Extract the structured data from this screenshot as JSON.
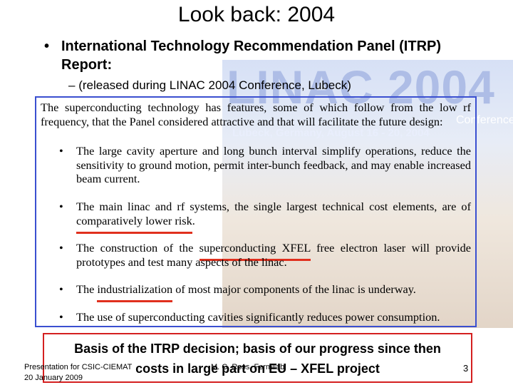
{
  "slide": {
    "title": "Look back: 2004",
    "bullet": "International Technology Recommendation Panel (ITRP) Report:",
    "sub_bullet": "(released during LINAC 2004 Conference, Lubeck)",
    "background": {
      "banner": "LINAC 2004",
      "conference": "Conference",
      "place": "Lubeck, Germany, August 16 - 20, 2004"
    },
    "quote": {
      "intro": "The superconducting technology has features, some of which follow from the low rf frequency, that the Panel considered attractive and that will facilitate the future design:",
      "items": [
        [
          {
            "text": "The large cavity aperture and long bunch interval simplify operations, reduce the sensitivity to ground motion, permit inter-bunch feedback, and may enable increased beam current."
          }
        ],
        [
          {
            "text": "The main linac and rf systems, the single largest technical cost elements, are of "
          },
          {
            "text": "comparatively lower risk",
            "highlight": true
          },
          {
            "text": "."
          }
        ],
        [
          {
            "text": "The construction of the "
          },
          {
            "text": "superconducting XFEL",
            "highlight": true
          },
          {
            "text": " free electron laser will provide prototypes and test many aspects of the linac."
          }
        ],
        [
          {
            "text": "The "
          },
          {
            "text": "industrialization",
            "highlight": true
          },
          {
            "text": " of most major components of the linac is underway."
          }
        ],
        [
          {
            "text": "The use of superconducting cavities significantly reduces power consumption."
          }
        ]
      ]
    },
    "callout": [
      "Basis of the ITRP decision; basis of our progress since then",
      "costs in large part on EU – XFEL project"
    ],
    "footer": {
      "event": "Presentation for CSIC-CIEMAT",
      "date": "20 January 2009",
      "author": "M. C. Ross, Fermilab",
      "page": "3"
    }
  }
}
